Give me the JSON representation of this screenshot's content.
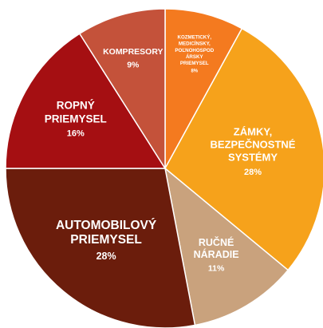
{
  "chart_data": {
    "type": "pie",
    "slices": [
      {
        "label_lines": [
          "KOZMETICKÝ,",
          "MEDICÍNSKY,",
          "POĽNOHOSPOD",
          "ÁRSKY",
          "PRIEMYSEL"
        ],
        "value_label": "8%",
        "value": 8,
        "color": "#f47a1f"
      },
      {
        "label_lines": [
          "ZÁMKY,",
          "BEZPEČNOSTNÉ",
          "SYSTÉMY"
        ],
        "value_label": "28%",
        "value": 28,
        "color": "#f6a21b"
      },
      {
        "label_lines": [
          "RUČNÉ",
          "NÁRADIE"
        ],
        "value_label": "11%",
        "value": 11,
        "color": "#c9a27d"
      },
      {
        "label_lines": [
          "AUTOMOBILOVÝ",
          "PRIEMYSEL"
        ],
        "value_label": "28%",
        "value": 28,
        "color": "#6b1d0c"
      },
      {
        "label_lines": [
          "ROPNÝ",
          "PRIEMYSEL"
        ],
        "value_label": "16%",
        "value": 16,
        "color": "#a50f12"
      },
      {
        "label_lines": [
          "KOMPRESORY"
        ],
        "value_label": "9%",
        "value": 9,
        "color": "#c4523a"
      }
    ]
  }
}
